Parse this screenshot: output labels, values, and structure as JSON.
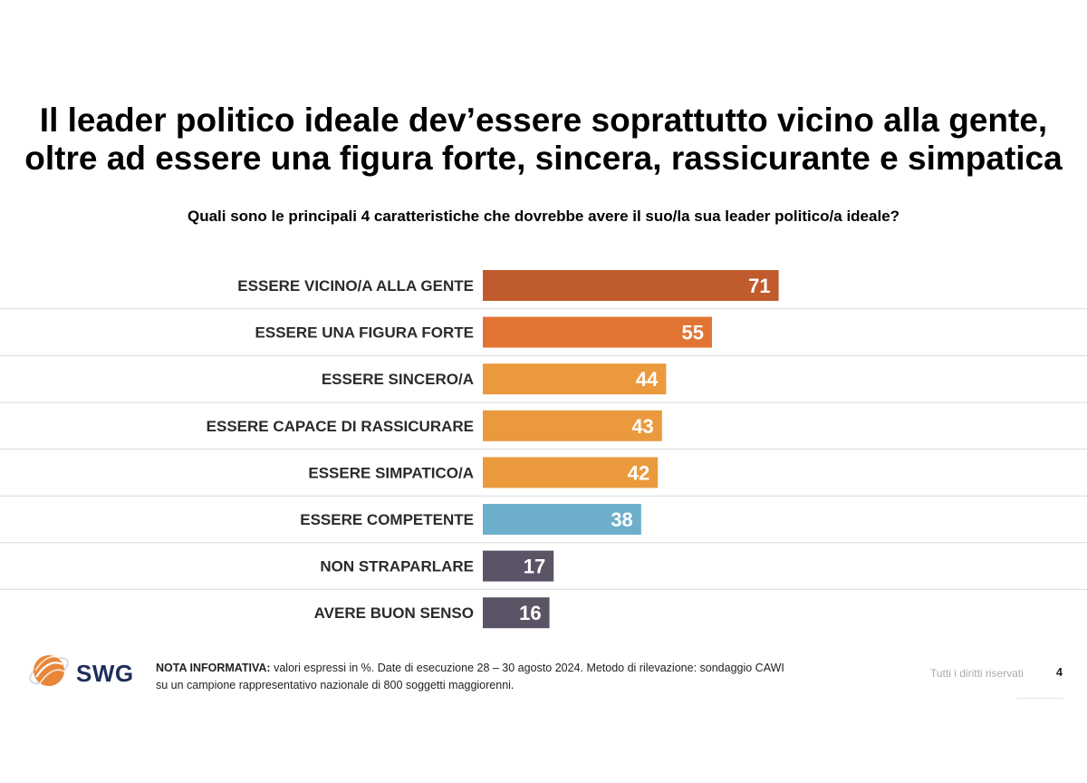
{
  "title": {
    "line1": "Il leader politico ideale dev’essere soprattutto vicino alla gente,",
    "line2": "oltre ad essere una figura forte, sincera, rassicurante e simpatica"
  },
  "question": "Quali sono le principali 4 caratteristiche che dovrebbe avere il suo/la sua leader politico/a ideale?",
  "chart_data": {
    "type": "bar",
    "orientation": "horizontal",
    "categories": [
      "ESSERE VICINO/A ALLA GENTE",
      "ESSERE UNA FIGURA FORTE",
      "ESSERE SINCERO/A",
      "ESSERE CAPACE DI RASSICURARE",
      "ESSERE SIMPATICO/A",
      "ESSERE COMPETENTE",
      "NON STRAPARLARE",
      "AVERE BUON SENSO"
    ],
    "values": [
      71,
      55,
      44,
      43,
      42,
      38,
      17,
      16
    ],
    "colors": [
      "#bf5b2d",
      "#e27433",
      "#ea9a3c",
      "#ea9a3c",
      "#ea9a3c",
      "#6daecb",
      "#5b5366",
      "#5b5366"
    ],
    "unit": "%",
    "xlim": [
      0,
      100
    ],
    "grid": false,
    "legend": "none",
    "row_separators": true
  },
  "logo": {
    "text": "SWG"
  },
  "note": {
    "label": "NOTA INFORMATIVA:",
    "text": "valori espressi in %. Date di esecuzione 28 – 30 agosto 2024. Metodo di rilevazione: sondaggio CAWI su un campione rappresentativo nazionale di 800 soggetti maggiorenni."
  },
  "footer": {
    "rights": "Tutti i diritti riservati",
    "page": "4"
  }
}
